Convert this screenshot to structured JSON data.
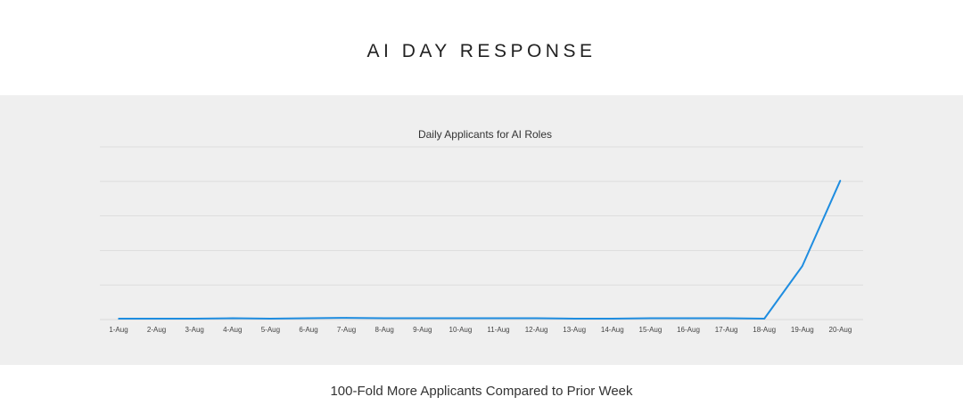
{
  "slide": {
    "title": "AI DAY RESPONSE",
    "footer": "100-Fold More Applicants Compared to Prior Week"
  },
  "chart_data": {
    "type": "line",
    "title": "Daily Applicants for AI Roles",
    "xlabel": "",
    "ylabel": "",
    "categories": [
      "1-Aug",
      "2-Aug",
      "3-Aug",
      "4-Aug",
      "5-Aug",
      "6-Aug",
      "7-Aug",
      "8-Aug",
      "9-Aug",
      "10-Aug",
      "11-Aug",
      "12-Aug",
      "13-Aug",
      "14-Aug",
      "15-Aug",
      "16-Aug",
      "17-Aug",
      "18-Aug",
      "19-Aug",
      "20-Aug"
    ],
    "series": [
      {
        "color": "#1f8de0",
        "values": [
          1,
          1,
          1,
          1.5,
          1,
          1.5,
          2,
          1.5,
          1.5,
          1.5,
          1.5,
          1.5,
          1,
          1,
          1.5,
          1.5,
          1.5,
          1,
          62,
          161
        ]
      }
    ],
    "ylim": [
      0,
      200
    ],
    "y_axis_labels_shown": false,
    "gridlines": true,
    "gridline_color": "#d9d9d9",
    "legend": "none"
  }
}
